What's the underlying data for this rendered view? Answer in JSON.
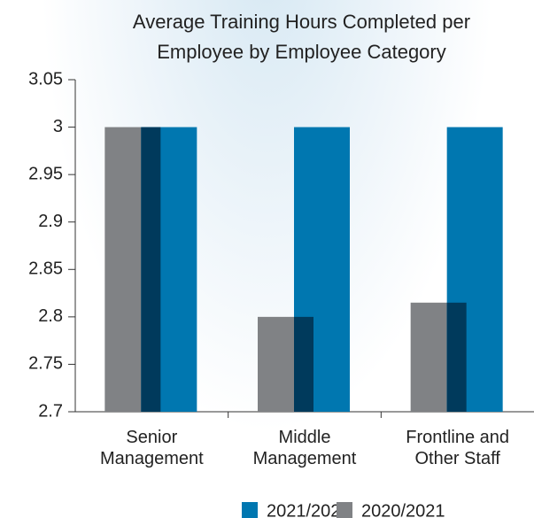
{
  "chart_data": {
    "type": "bar",
    "title": "Average Training Hours Completed per Employee by Employee Category",
    "categories": [
      "Senior Management",
      "Middle Management",
      "Frontline and Other Staff"
    ],
    "series": [
      {
        "name": "2021/2022",
        "color": "#0077b0",
        "values": [
          3,
          3,
          3
        ]
      },
      {
        "name": "2020/2021",
        "color": "#808285",
        "values": [
          3,
          2.8,
          2.815
        ]
      }
    ],
    "overlap_color": "#003a5c",
    "ylim": [
      2.7,
      3.05
    ],
    "yticks": [
      2.7,
      2.75,
      2.8,
      2.85,
      2.9,
      2.95,
      3,
      3.05
    ],
    "grid": false
  }
}
